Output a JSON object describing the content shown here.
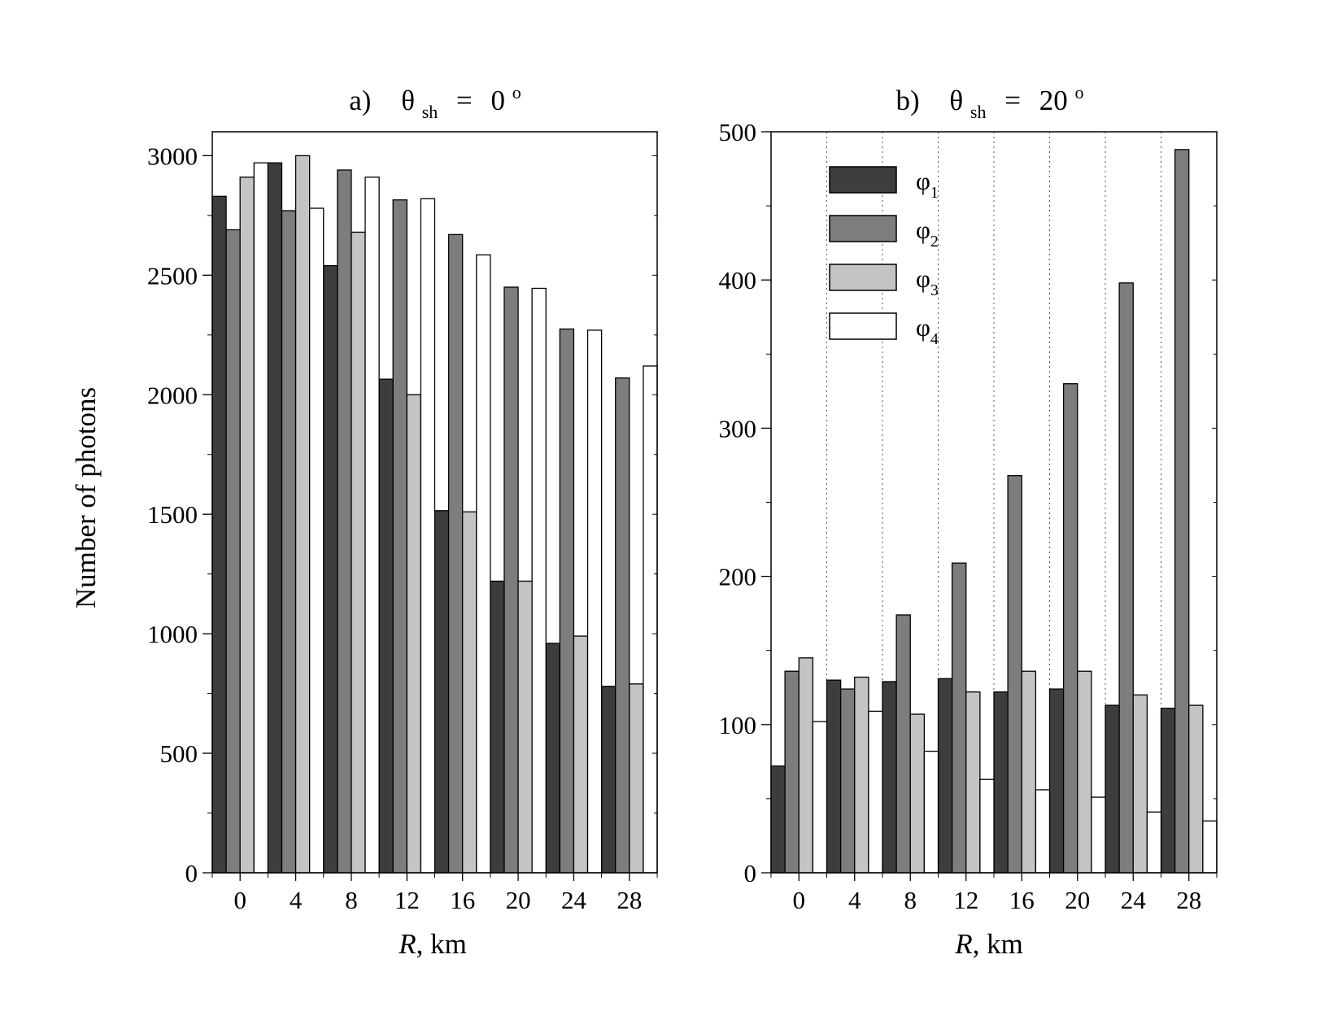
{
  "ylabel": "Number of photons",
  "series_colors": [
    "#3d3d3d",
    "#7d7d7d",
    "#c4c4c4",
    "#ffffff"
  ],
  "legend": [
    {
      "sym": "φ",
      "sub": "1"
    },
    {
      "sym": "φ",
      "sub": "2"
    },
    {
      "sym": "φ",
      "sub": "3"
    },
    {
      "sym": "φ",
      "sub": "4"
    }
  ],
  "chart_data": [
    {
      "type": "bar",
      "title": {
        "prefix": "a)",
        "sym": "θ",
        "sub": "sh",
        "eq": "=",
        "value": "0",
        "sup": "o"
      },
      "xlabel": {
        "var": "R",
        "unit": ", km"
      },
      "ylabel": "Number of photons",
      "ylim": [
        0,
        3100
      ],
      "yticks": [
        0,
        500,
        1000,
        1500,
        2000,
        2500,
        3000
      ],
      "categories": [
        "0",
        "4",
        "8",
        "12",
        "16",
        "20",
        "24",
        "28"
      ],
      "series": [
        {
          "values": [
            2830,
            2970,
            2540,
            2065,
            1515,
            1220,
            960,
            780
          ]
        },
        {
          "values": [
            2690,
            2770,
            2940,
            2815,
            2670,
            2450,
            2275,
            2070
          ]
        },
        {
          "values": [
            2910,
            3000,
            2680,
            2000,
            1510,
            1220,
            990,
            790
          ]
        },
        {
          "values": [
            2970,
            2780,
            2910,
            2820,
            2585,
            2445,
            2270,
            2120
          ]
        }
      ],
      "legend": false,
      "grid": false
    },
    {
      "type": "bar",
      "title": {
        "prefix": "b)",
        "sym": "θ",
        "sub": "sh",
        "eq": "=",
        "value": "20",
        "sup": "o"
      },
      "xlabel": {
        "var": "R",
        "unit": ", km"
      },
      "ylim": [
        0,
        500
      ],
      "yticks": [
        0,
        100,
        200,
        300,
        400,
        500
      ],
      "categories": [
        "0",
        "4",
        "8",
        "12",
        "16",
        "20",
        "24",
        "28"
      ],
      "series": [
        {
          "values": [
            72,
            130,
            129,
            131,
            122,
            124,
            113,
            111
          ]
        },
        {
          "values": [
            136,
            124,
            174,
            209,
            268,
            330,
            398,
            488
          ]
        },
        {
          "values": [
            145,
            132,
            107,
            122,
            136,
            136,
            120,
            113
          ]
        },
        {
          "values": [
            102,
            109,
            82,
            63,
            56,
            51,
            41,
            35
          ]
        }
      ],
      "legend": true,
      "legend_position": "top-left",
      "grid": "vertical-dotted"
    }
  ]
}
